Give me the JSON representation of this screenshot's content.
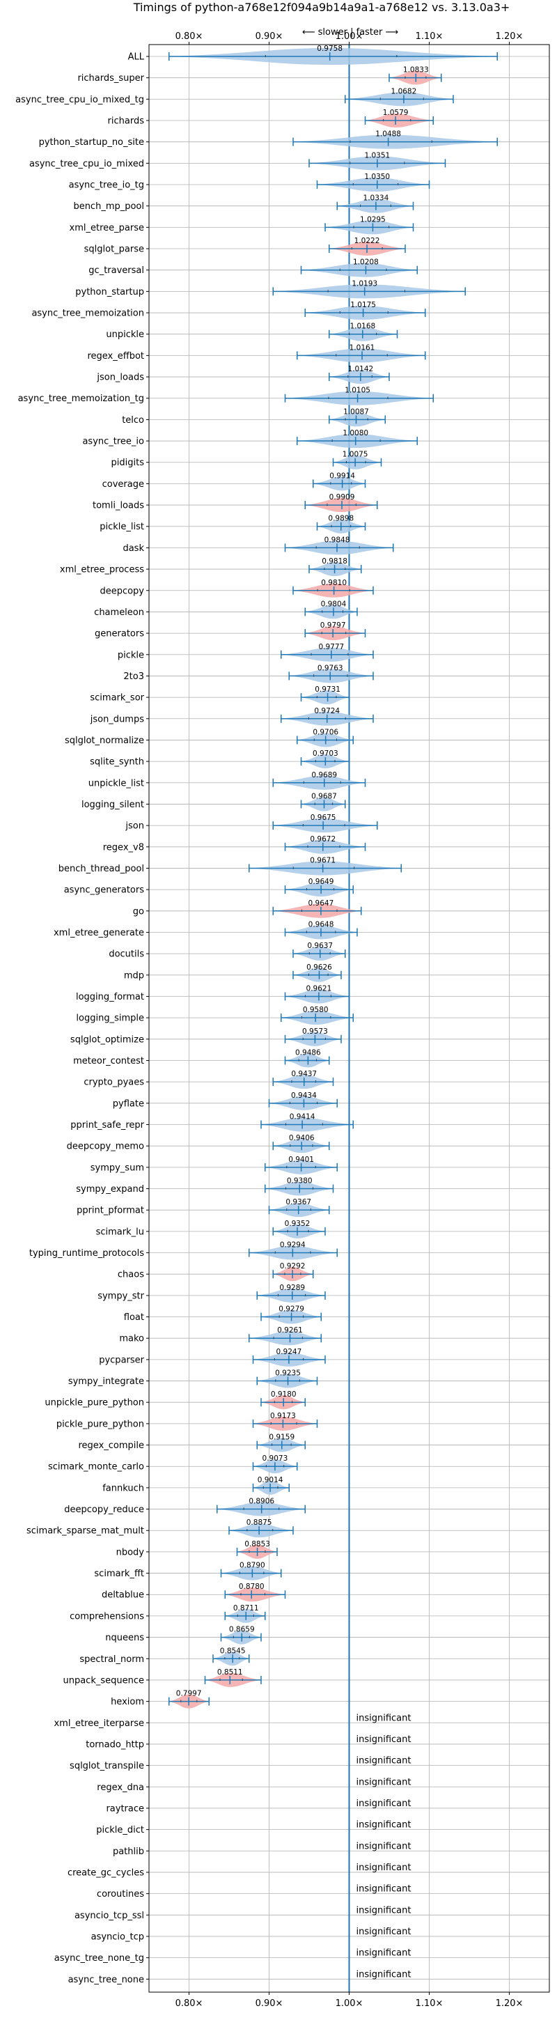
{
  "chart_data": {
    "type": "violin",
    "title": "Timings of python-a768e12f094a9b14a9a1-a768e12 vs. 3.13.0a3+",
    "direction_label": "⟵ slower | faster ⟶",
    "xlim": [
      0.75,
      1.25
    ],
    "xticks": [
      0.8,
      0.9,
      1.0,
      1.1,
      1.2
    ],
    "xtick_labels": [
      "0.80×",
      "0.90×",
      "1.00×",
      "1.10×",
      "1.20×"
    ],
    "grid": true,
    "insignificant_label": "insignificant",
    "colors": {
      "normal": "#a8c8e8",
      "highlight": "#f4a8a8",
      "line": "#1f77b4",
      "grid": "#b0b0b0"
    },
    "benchmarks": [
      {
        "name": "ALL",
        "value": 0.9758,
        "label": "0.9758",
        "min": 0.775,
        "max": 1.185,
        "color": "normal"
      },
      {
        "name": "richards_super",
        "value": 1.0833,
        "label": "1.0833",
        "min": 1.05,
        "max": 1.115,
        "color": "highlight"
      },
      {
        "name": "async_tree_cpu_io_mixed_tg",
        "value": 1.0682,
        "label": "1.0682",
        "min": 0.995,
        "max": 1.13,
        "color": "normal"
      },
      {
        "name": "richards",
        "value": 1.0579,
        "label": "1.0579",
        "min": 1.02,
        "max": 1.105,
        "color": "highlight"
      },
      {
        "name": "python_startup_no_site",
        "value": 1.0488,
        "label": "1.0488",
        "min": 0.93,
        "max": 1.185,
        "color": "normal"
      },
      {
        "name": "async_tree_cpu_io_mixed",
        "value": 1.0351,
        "label": "1.0351",
        "min": 0.95,
        "max": 1.12,
        "color": "normal"
      },
      {
        "name": "async_tree_io_tg",
        "value": 1.035,
        "label": "1.0350",
        "min": 0.96,
        "max": 1.1,
        "color": "normal"
      },
      {
        "name": "bench_mp_pool",
        "value": 1.0334,
        "label": "1.0334",
        "min": 0.985,
        "max": 1.08,
        "color": "normal"
      },
      {
        "name": "xml_etree_parse",
        "value": 1.0295,
        "label": "1.0295",
        "min": 0.97,
        "max": 1.08,
        "color": "normal"
      },
      {
        "name": "sqlglot_parse",
        "value": 1.0222,
        "label": "1.0222",
        "min": 0.975,
        "max": 1.07,
        "color": "highlight"
      },
      {
        "name": "gc_traversal",
        "value": 1.0208,
        "label": "1.0208",
        "min": 0.94,
        "max": 1.085,
        "color": "normal"
      },
      {
        "name": "python_startup",
        "value": 1.0193,
        "label": "1.0193",
        "min": 0.905,
        "max": 1.145,
        "color": "normal"
      },
      {
        "name": "async_tree_memoization",
        "value": 1.0175,
        "label": "1.0175",
        "min": 0.945,
        "max": 1.095,
        "color": "normal"
      },
      {
        "name": "unpickle",
        "value": 1.0168,
        "label": "1.0168",
        "min": 0.975,
        "max": 1.06,
        "color": "normal"
      },
      {
        "name": "regex_effbot",
        "value": 1.0161,
        "label": "1.0161",
        "min": 0.935,
        "max": 1.095,
        "color": "normal"
      },
      {
        "name": "json_loads",
        "value": 1.0142,
        "label": "1.0142",
        "min": 0.975,
        "max": 1.05,
        "color": "normal"
      },
      {
        "name": "async_tree_memoization_tg",
        "value": 1.0105,
        "label": "1.0105",
        "min": 0.92,
        "max": 1.105,
        "color": "normal"
      },
      {
        "name": "telco",
        "value": 1.0087,
        "label": "1.0087",
        "min": 0.975,
        "max": 1.045,
        "color": "normal"
      },
      {
        "name": "async_tree_io",
        "value": 1.008,
        "label": "1.0080",
        "min": 0.935,
        "max": 1.085,
        "color": "normal"
      },
      {
        "name": "pidigits",
        "value": 1.0075,
        "label": "1.0075",
        "min": 0.98,
        "max": 1.04,
        "color": "normal"
      },
      {
        "name": "coverage",
        "value": 0.9914,
        "label": "0.9914",
        "min": 0.955,
        "max": 1.02,
        "color": "normal"
      },
      {
        "name": "tomli_loads",
        "value": 0.9909,
        "label": "0.9909",
        "min": 0.945,
        "max": 1.035,
        "color": "highlight"
      },
      {
        "name": "pickle_list",
        "value": 0.9898,
        "label": "0.9898",
        "min": 0.96,
        "max": 1.02,
        "color": "normal"
      },
      {
        "name": "dask",
        "value": 0.9848,
        "label": "0.9848",
        "min": 0.92,
        "max": 1.055,
        "color": "normal"
      },
      {
        "name": "xml_etree_process",
        "value": 0.9818,
        "label": "0.9818",
        "min": 0.95,
        "max": 1.015,
        "color": "normal"
      },
      {
        "name": "deepcopy",
        "value": 0.981,
        "label": "0.9810",
        "min": 0.93,
        "max": 1.03,
        "color": "highlight"
      },
      {
        "name": "chameleon",
        "value": 0.9804,
        "label": "0.9804",
        "min": 0.945,
        "max": 1.01,
        "color": "normal"
      },
      {
        "name": "generators",
        "value": 0.9797,
        "label": "0.9797",
        "min": 0.945,
        "max": 1.02,
        "color": "highlight"
      },
      {
        "name": "pickle",
        "value": 0.9777,
        "label": "0.9777",
        "min": 0.915,
        "max": 1.03,
        "color": "normal"
      },
      {
        "name": "2to3",
        "value": 0.9763,
        "label": "0.9763",
        "min": 0.925,
        "max": 1.03,
        "color": "normal"
      },
      {
        "name": "scimark_sor",
        "value": 0.9731,
        "label": "0.9731",
        "min": 0.94,
        "max": 1.0,
        "color": "normal"
      },
      {
        "name": "json_dumps",
        "value": 0.9724,
        "label": "0.9724",
        "min": 0.915,
        "max": 1.03,
        "color": "normal"
      },
      {
        "name": "sqlglot_normalize",
        "value": 0.9706,
        "label": "0.9706",
        "min": 0.935,
        "max": 1.005,
        "color": "normal"
      },
      {
        "name": "sqlite_synth",
        "value": 0.9703,
        "label": "0.9703",
        "min": 0.94,
        "max": 1.0,
        "color": "normal"
      },
      {
        "name": "unpickle_list",
        "value": 0.9689,
        "label": "0.9689",
        "min": 0.905,
        "max": 1.02,
        "color": "normal"
      },
      {
        "name": "logging_silent",
        "value": 0.9687,
        "label": "0.9687",
        "min": 0.94,
        "max": 0.995,
        "color": "normal"
      },
      {
        "name": "json",
        "value": 0.9675,
        "label": "0.9675",
        "min": 0.905,
        "max": 1.035,
        "color": "normal"
      },
      {
        "name": "regex_v8",
        "value": 0.9672,
        "label": "0.9672",
        "min": 0.92,
        "max": 1.02,
        "color": "normal"
      },
      {
        "name": "bench_thread_pool",
        "value": 0.9671,
        "label": "0.9671",
        "min": 0.875,
        "max": 1.065,
        "color": "normal"
      },
      {
        "name": "async_generators",
        "value": 0.9649,
        "label": "0.9649",
        "min": 0.92,
        "max": 1.005,
        "color": "normal"
      },
      {
        "name": "go",
        "value": 0.9647,
        "label": "0.9647",
        "min": 0.905,
        "max": 1.015,
        "color": "highlight"
      },
      {
        "name": "xml_etree_generate",
        "value": 0.9648,
        "label": "0.9648",
        "min": 0.92,
        "max": 1.01,
        "color": "normal"
      },
      {
        "name": "docutils",
        "value": 0.9637,
        "label": "0.9637",
        "min": 0.93,
        "max": 0.995,
        "color": "normal"
      },
      {
        "name": "mdp",
        "value": 0.9626,
        "label": "0.9626",
        "min": 0.93,
        "max": 0.99,
        "color": "normal"
      },
      {
        "name": "logging_format",
        "value": 0.9621,
        "label": "0.9621",
        "min": 0.92,
        "max": 1.0,
        "color": "normal"
      },
      {
        "name": "logging_simple",
        "value": 0.958,
        "label": "0.9580",
        "min": 0.915,
        "max": 1.005,
        "color": "normal"
      },
      {
        "name": "sqlglot_optimize",
        "value": 0.9573,
        "label": "0.9573",
        "min": 0.92,
        "max": 0.99,
        "color": "normal"
      },
      {
        "name": "meteor_contest",
        "value": 0.9486,
        "label": "0.9486",
        "min": 0.92,
        "max": 0.975,
        "color": "normal"
      },
      {
        "name": "crypto_pyaes",
        "value": 0.9437,
        "label": "0.9437",
        "min": 0.905,
        "max": 0.98,
        "color": "normal"
      },
      {
        "name": "pyflate",
        "value": 0.9434,
        "label": "0.9434",
        "min": 0.9,
        "max": 0.985,
        "color": "normal"
      },
      {
        "name": "pprint_safe_repr",
        "value": 0.9414,
        "label": "0.9414",
        "min": 0.89,
        "max": 1.005,
        "color": "normal"
      },
      {
        "name": "deepcopy_memo",
        "value": 0.9406,
        "label": "0.9406",
        "min": 0.905,
        "max": 0.975,
        "color": "normal"
      },
      {
        "name": "sympy_sum",
        "value": 0.9401,
        "label": "0.9401",
        "min": 0.895,
        "max": 0.985,
        "color": "normal"
      },
      {
        "name": "sympy_expand",
        "value": 0.938,
        "label": "0.9380",
        "min": 0.895,
        "max": 0.98,
        "color": "normal"
      },
      {
        "name": "pprint_pformat",
        "value": 0.9367,
        "label": "0.9367",
        "min": 0.9,
        "max": 0.975,
        "color": "normal"
      },
      {
        "name": "scimark_lu",
        "value": 0.9352,
        "label": "0.9352",
        "min": 0.905,
        "max": 0.97,
        "color": "normal"
      },
      {
        "name": "typing_runtime_protocols",
        "value": 0.9294,
        "label": "0.9294",
        "min": 0.875,
        "max": 0.985,
        "color": "normal"
      },
      {
        "name": "chaos",
        "value": 0.9292,
        "label": "0.9292",
        "min": 0.905,
        "max": 0.955,
        "color": "highlight"
      },
      {
        "name": "sympy_str",
        "value": 0.9289,
        "label": "0.9289",
        "min": 0.885,
        "max": 0.97,
        "color": "normal"
      },
      {
        "name": "float",
        "value": 0.9279,
        "label": "0.9279",
        "min": 0.89,
        "max": 0.965,
        "color": "normal"
      },
      {
        "name": "mako",
        "value": 0.9261,
        "label": "0.9261",
        "min": 0.875,
        "max": 0.965,
        "color": "normal"
      },
      {
        "name": "pycparser",
        "value": 0.9247,
        "label": "0.9247",
        "min": 0.88,
        "max": 0.97,
        "color": "normal"
      },
      {
        "name": "sympy_integrate",
        "value": 0.9235,
        "label": "0.9235",
        "min": 0.885,
        "max": 0.96,
        "color": "normal"
      },
      {
        "name": "unpickle_pure_python",
        "value": 0.918,
        "label": "0.9180",
        "min": 0.89,
        "max": 0.945,
        "color": "highlight"
      },
      {
        "name": "pickle_pure_python",
        "value": 0.9173,
        "label": "0.9173",
        "min": 0.88,
        "max": 0.96,
        "color": "highlight"
      },
      {
        "name": "regex_compile",
        "value": 0.9159,
        "label": "0.9159",
        "min": 0.885,
        "max": 0.945,
        "color": "normal"
      },
      {
        "name": "scimark_monte_carlo",
        "value": 0.9073,
        "label": "0.9073",
        "min": 0.88,
        "max": 0.935,
        "color": "normal"
      },
      {
        "name": "fannkuch",
        "value": 0.9014,
        "label": "0.9014",
        "min": 0.88,
        "max": 0.925,
        "color": "normal"
      },
      {
        "name": "deepcopy_reduce",
        "value": 0.8906,
        "label": "0.8906",
        "min": 0.835,
        "max": 0.945,
        "color": "normal"
      },
      {
        "name": "scimark_sparse_mat_mult",
        "value": 0.8875,
        "label": "0.8875",
        "min": 0.85,
        "max": 0.93,
        "color": "normal"
      },
      {
        "name": "nbody",
        "value": 0.8853,
        "label": "0.8853",
        "min": 0.86,
        "max": 0.91,
        "color": "highlight"
      },
      {
        "name": "scimark_fft",
        "value": 0.879,
        "label": "0.8790",
        "min": 0.84,
        "max": 0.915,
        "color": "normal"
      },
      {
        "name": "deltablue",
        "value": 0.878,
        "label": "0.8780",
        "min": 0.845,
        "max": 0.92,
        "color": "highlight"
      },
      {
        "name": "comprehensions",
        "value": 0.8711,
        "label": "0.8711",
        "min": 0.845,
        "max": 0.895,
        "color": "normal"
      },
      {
        "name": "nqueens",
        "value": 0.8659,
        "label": "0.8659",
        "min": 0.84,
        "max": 0.89,
        "color": "normal"
      },
      {
        "name": "spectral_norm",
        "value": 0.8545,
        "label": "0.8545",
        "min": 0.83,
        "max": 0.875,
        "color": "normal"
      },
      {
        "name": "unpack_sequence",
        "value": 0.8511,
        "label": "0.8511",
        "min": 0.82,
        "max": 0.89,
        "color": "highlight"
      },
      {
        "name": "hexiom",
        "value": 0.7997,
        "label": "0.7997",
        "min": 0.775,
        "max": 0.825,
        "color": "highlight"
      },
      {
        "name": "xml_etree_iterparse",
        "value": null,
        "label": "insignificant"
      },
      {
        "name": "tornado_http",
        "value": null,
        "label": "insignificant"
      },
      {
        "name": "sqlglot_transpile",
        "value": null,
        "label": "insignificant"
      },
      {
        "name": "regex_dna",
        "value": null,
        "label": "insignificant"
      },
      {
        "name": "raytrace",
        "value": null,
        "label": "insignificant"
      },
      {
        "name": "pickle_dict",
        "value": null,
        "label": "insignificant"
      },
      {
        "name": "pathlib",
        "value": null,
        "label": "insignificant"
      },
      {
        "name": "create_gc_cycles",
        "value": null,
        "label": "insignificant"
      },
      {
        "name": "coroutines",
        "value": null,
        "label": "insignificant"
      },
      {
        "name": "asyncio_tcp_ssl",
        "value": null,
        "label": "insignificant"
      },
      {
        "name": "asyncio_tcp",
        "value": null,
        "label": "insignificant"
      },
      {
        "name": "async_tree_none_tg",
        "value": null,
        "label": "insignificant"
      },
      {
        "name": "async_tree_none",
        "value": null,
        "label": "insignificant"
      }
    ]
  }
}
